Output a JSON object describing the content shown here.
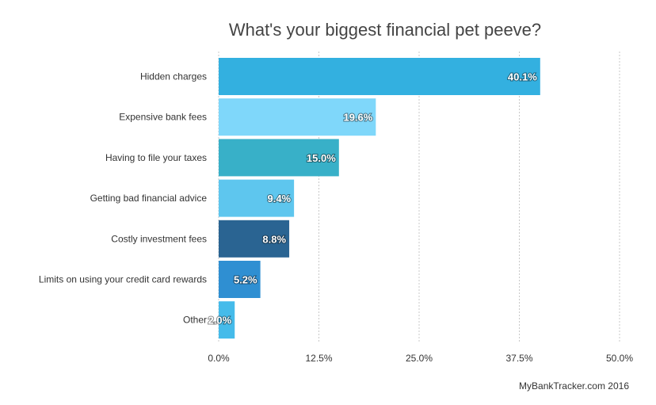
{
  "chart_data": {
    "type": "bar",
    "orientation": "horizontal",
    "title": "What's your biggest financial pet peeve?",
    "categories": [
      "Hidden charges",
      "Expensive bank fees",
      "Having to file your taxes",
      "Getting bad financial advice",
      "Costly investment fees",
      "Limits on using your credit card rewards",
      "Other"
    ],
    "values": [
      40.1,
      19.6,
      15.0,
      9.4,
      8.8,
      5.2,
      2.0
    ],
    "data_labels": [
      "40.1%",
      "19.6%",
      "15.0%",
      "9.4%",
      "8.8%",
      "5.2%",
      "2.0%"
    ],
    "colors": [
      "#33b0e0",
      "#7fd7fa",
      "#38b0c8",
      "#5ec6ee",
      "#2a6492",
      "#2f8fd2",
      "#45bbea"
    ],
    "xlim": [
      0,
      50
    ],
    "xticks": [
      0,
      12.5,
      25,
      37.5,
      50
    ],
    "xtick_labels": [
      "0.0%",
      "12.5%",
      "25.0%",
      "37.5%",
      "50.0%"
    ],
    "grid": true,
    "legend": "none"
  },
  "source": "MyBankTracker.com 2016"
}
